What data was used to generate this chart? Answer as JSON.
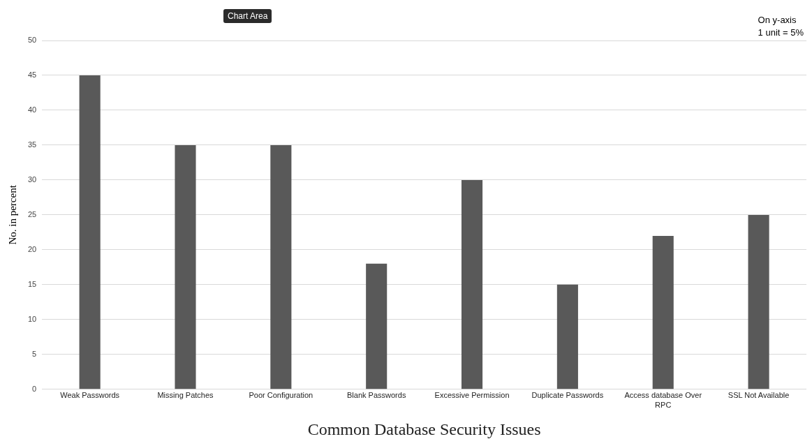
{
  "chart_data": {
    "type": "bar",
    "xlabel": "Common Database Security Issues",
    "ylabel": "No. in percent",
    "categories": [
      "Weak Passwords",
      "Missing Patches",
      "Poor Configuration",
      "Blank Passwords",
      "Excessive Permission",
      "Duplicate Passwords",
      "Access database Over RPC",
      "SSL Not Available"
    ],
    "values": [
      45,
      35,
      35,
      18,
      30,
      15,
      22,
      25
    ],
    "color": "#595959",
    "ylim": [
      0,
      50
    ],
    "yticks": [
      0,
      5,
      10,
      15,
      20,
      25,
      30,
      35,
      40,
      45,
      50
    ],
    "grid": "y",
    "legend": false,
    "annotations": [
      "Chart Area",
      "On y-axis\n1 unit = 5%"
    ]
  }
}
